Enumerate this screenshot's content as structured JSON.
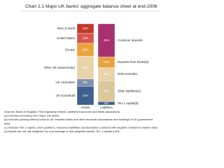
{
  "chart_data": {
    "type": "stacked_bar",
    "title": "Chart 2.1  Major UK banks' aggregate balance sheet at end-2006",
    "categories": [
      "Assets",
      "Liabilities"
    ],
    "bars": [
      {
        "labels": [
          "Rest of world",
          "United States",
          "Europe",
          "Other UK exposures(a)",
          "UK corporates",
          "UK household"
        ],
        "values": [
          12,
          12,
          16,
          28,
          9,
          23
        ],
        "value_labels": [
          "12%",
          "12%",
          "16%",
          "28%",
          "9%",
          "23%"
        ],
        "colors": [
          "#c0392b",
          "#d9534f",
          "#e8a33c",
          "#e9d3a8",
          "#7f93ad",
          "#3f5f8f"
        ]
      },
      {
        "labels": [
          "Customer deposits",
          "Deposits from banks(b)",
          "Debt securities",
          "Other liabilities(c)",
          "Tier 1 capital(d)"
        ],
        "values": [
          41,
          13,
          16,
          26,
          4
        ],
        "value_labels": [
          "41%",
          "13%",
          "16%",
          "26%",
          "4%"
        ],
        "colors": [
          "#a8306e",
          "#e8a33c",
          "#e9d3a8",
          "#dcc79c",
          "#3f5f8f"
        ]
      }
    ],
    "notes": [
      "Sources: Bank of England, FSA regulatory returns, published accounts and Bank calculations.",
      "(a) Includes borrowing from major UK banks.",
      "(b) Includes (among others) loans to UK resident banks and other financial corporations and holdings of UK government",
      "     debt.",
      "(c) Includes Tier 2 capital, short positions, insurance liabilities and derivative contracts with negative marked-to-market value.",
      "(d) Assets are not risk-weighted. As a percentage of risk-weighted assets, Tier 1 capital is 8%."
    ]
  }
}
